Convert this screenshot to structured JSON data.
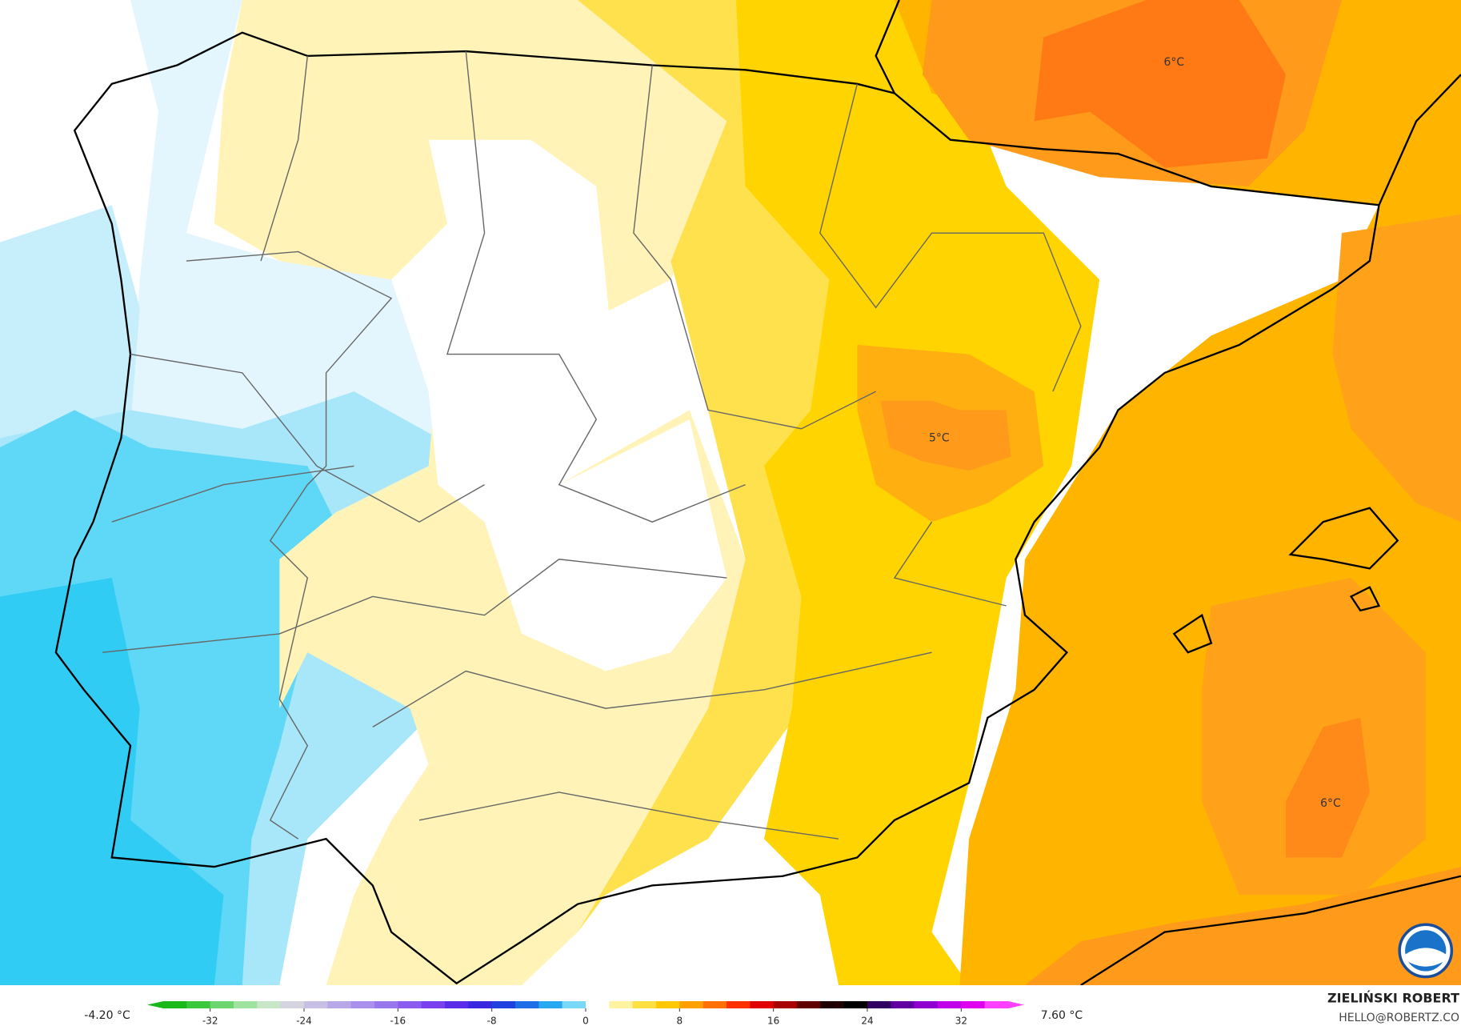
{
  "map": {
    "labels": [
      "6°C",
      "5°C",
      "6°C"
    ]
  },
  "colorbar": {
    "min_label": "-4.20 °C",
    "max_label": "7.60 °C",
    "range": [
      -36,
      36
    ],
    "ticks": [
      -32,
      -24,
      -16,
      -8,
      0,
      8,
      16,
      24,
      32
    ],
    "colors": [
      "#19b919",
      "#3cc83c",
      "#6ed66e",
      "#a0e3a0",
      "#c8e6c8",
      "#d4d4e0",
      "#c8c0e4",
      "#b8a8e8",
      "#a890ec",
      "#9878ec",
      "#8a5cf0",
      "#7a40f0",
      "#5a2ce8",
      "#3a28e0",
      "#2040e0",
      "#1e6ee8",
      "#28a8f0",
      "#7ad8f8",
      "#ffffff",
      "#fff3a0",
      "#ffe040",
      "#ffc800",
      "#ffa000",
      "#ff7000",
      "#ff3000",
      "#e00000",
      "#a80000",
      "#600000",
      "#200000",
      "#000000",
      "#300060",
      "#6000a0",
      "#9000d0",
      "#c000e8",
      "#e000f0",
      "#ff40ff"
    ]
  },
  "credit": {
    "author": "ZIELIŃSKI ROBERT",
    "email": "HELLO@ROBERTZ.CO"
  }
}
